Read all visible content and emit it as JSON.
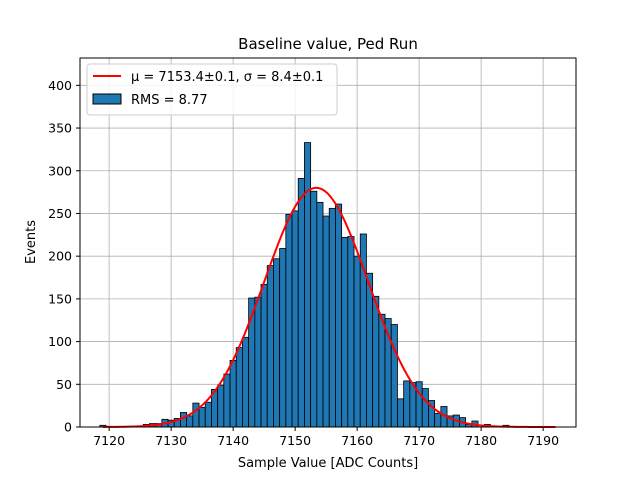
{
  "chart_data": {
    "type": "bar",
    "title": "Baseline value, Ped Run",
    "xlabel": "Sample Value [ADC Counts]",
    "ylabel": "Events",
    "xlim": [
      7115.3,
      7195.3
    ],
    "ylim": [
      0,
      432
    ],
    "xticks": [
      7120,
      7130,
      7140,
      7150,
      7160,
      7170,
      7180,
      7190
    ],
    "yticks": [
      0,
      50,
      100,
      150,
      200,
      250,
      300,
      350,
      400
    ],
    "grid": true,
    "legend_position": "top-left",
    "bin_width": 1,
    "bins": [
      [
        7119,
        2
      ],
      [
        7126,
        3
      ],
      [
        7127,
        4
      ],
      [
        7128,
        4
      ],
      [
        7129,
        9
      ],
      [
        7130,
        8
      ],
      [
        7131,
        10
      ],
      [
        7132,
        17
      ],
      [
        7133,
        13
      ],
      [
        7134,
        28
      ],
      [
        7135,
        23
      ],
      [
        7136,
        29
      ],
      [
        7137,
        44
      ],
      [
        7138,
        49
      ],
      [
        7139,
        62
      ],
      [
        7140,
        78
      ],
      [
        7141,
        93
      ],
      [
        7142,
        105
      ],
      [
        7143,
        151
      ],
      [
        7144,
        152
      ],
      [
        7145,
        167
      ],
      [
        7146,
        189
      ],
      [
        7147,
        197
      ],
      [
        7148,
        209
      ],
      [
        7149,
        249
      ],
      [
        7150,
        253
      ],
      [
        7151,
        291
      ],
      [
        7152,
        333
      ],
      [
        7153,
        276
      ],
      [
        7154,
        263
      ],
      [
        7155,
        247
      ],
      [
        7156,
        256
      ],
      [
        7157,
        261
      ],
      [
        7158,
        222
      ],
      [
        7159,
        223
      ],
      [
        7160,
        200
      ],
      [
        7161,
        226
      ],
      [
        7162,
        180
      ],
      [
        7163,
        153
      ],
      [
        7164,
        132
      ],
      [
        7165,
        127
      ],
      [
        7166,
        120
      ],
      [
        7167,
        33
      ],
      [
        7168,
        54
      ],
      [
        7169,
        52
      ],
      [
        7170,
        53
      ],
      [
        7171,
        45
      ],
      [
        7172,
        31
      ],
      [
        7173,
        16
      ],
      [
        7174,
        24
      ],
      [
        7175,
        13
      ],
      [
        7176,
        14
      ],
      [
        7177,
        11
      ],
      [
        7178,
        3
      ],
      [
        7179,
        7
      ],
      [
        7181,
        3
      ],
      [
        7184,
        2
      ]
    ],
    "bar_color": "#1f77b4",
    "fit": {
      "type": "gaussian",
      "mu": 7153.4,
      "sigma": 8.4,
      "amplitude": 280,
      "x_range": [
        7119,
        7192
      ],
      "color": "#ff0000"
    },
    "legend": [
      {
        "label": "μ = 7153.4±0.1, σ = 8.4±0.1",
        "kind": "line",
        "color": "#ff0000"
      },
      {
        "label": "RMS = 8.77",
        "kind": "patch",
        "color": "#1f77b4"
      }
    ]
  }
}
